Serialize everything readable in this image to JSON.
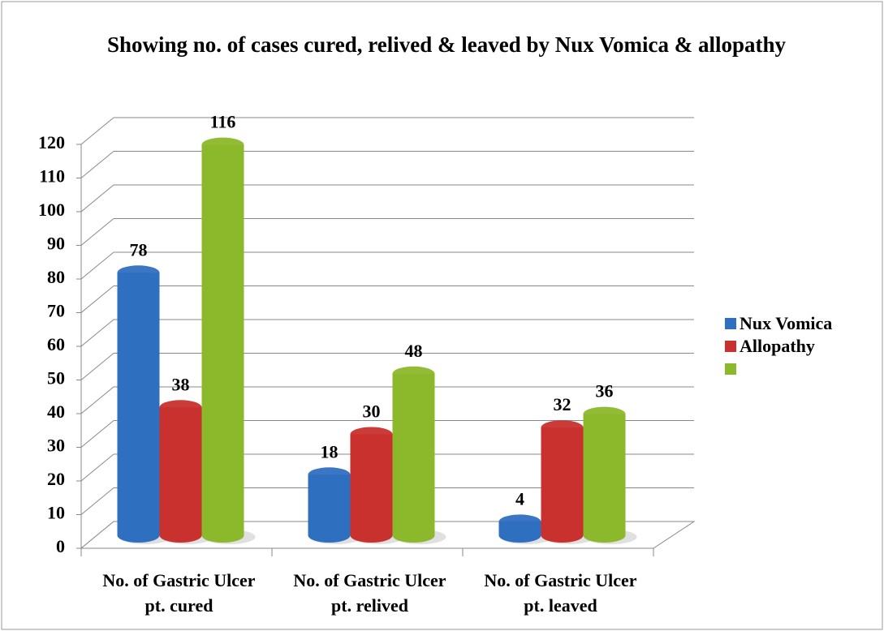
{
  "chart_data": {
    "type": "bar3d",
    "title": "Showing no. of cases cured, relived & leaved by Nux Vomica & allopathy",
    "categories": [
      "No. of Gastric Ulcer pt. cured",
      "No. of Gastric Ulcer pt. relived",
      "No. of Gastric Ulcer pt. leaved"
    ],
    "series": [
      {
        "name": "Nux Vomica",
        "color": "#2f6fc0",
        "values": [
          78,
          18,
          4
        ]
      },
      {
        "name": "Allopathy",
        "color": "#c8312e",
        "values": [
          38,
          30,
          32
        ]
      },
      {
        "name": null,
        "color": "#8cb82b",
        "values": [
          116,
          48,
          36
        ]
      }
    ],
    "ylim": [
      0,
      120
    ],
    "yticks": [
      0,
      10,
      20,
      30,
      40,
      50,
      60,
      70,
      80,
      90,
      100,
      110,
      120
    ],
    "grid": true,
    "legend": "right"
  }
}
